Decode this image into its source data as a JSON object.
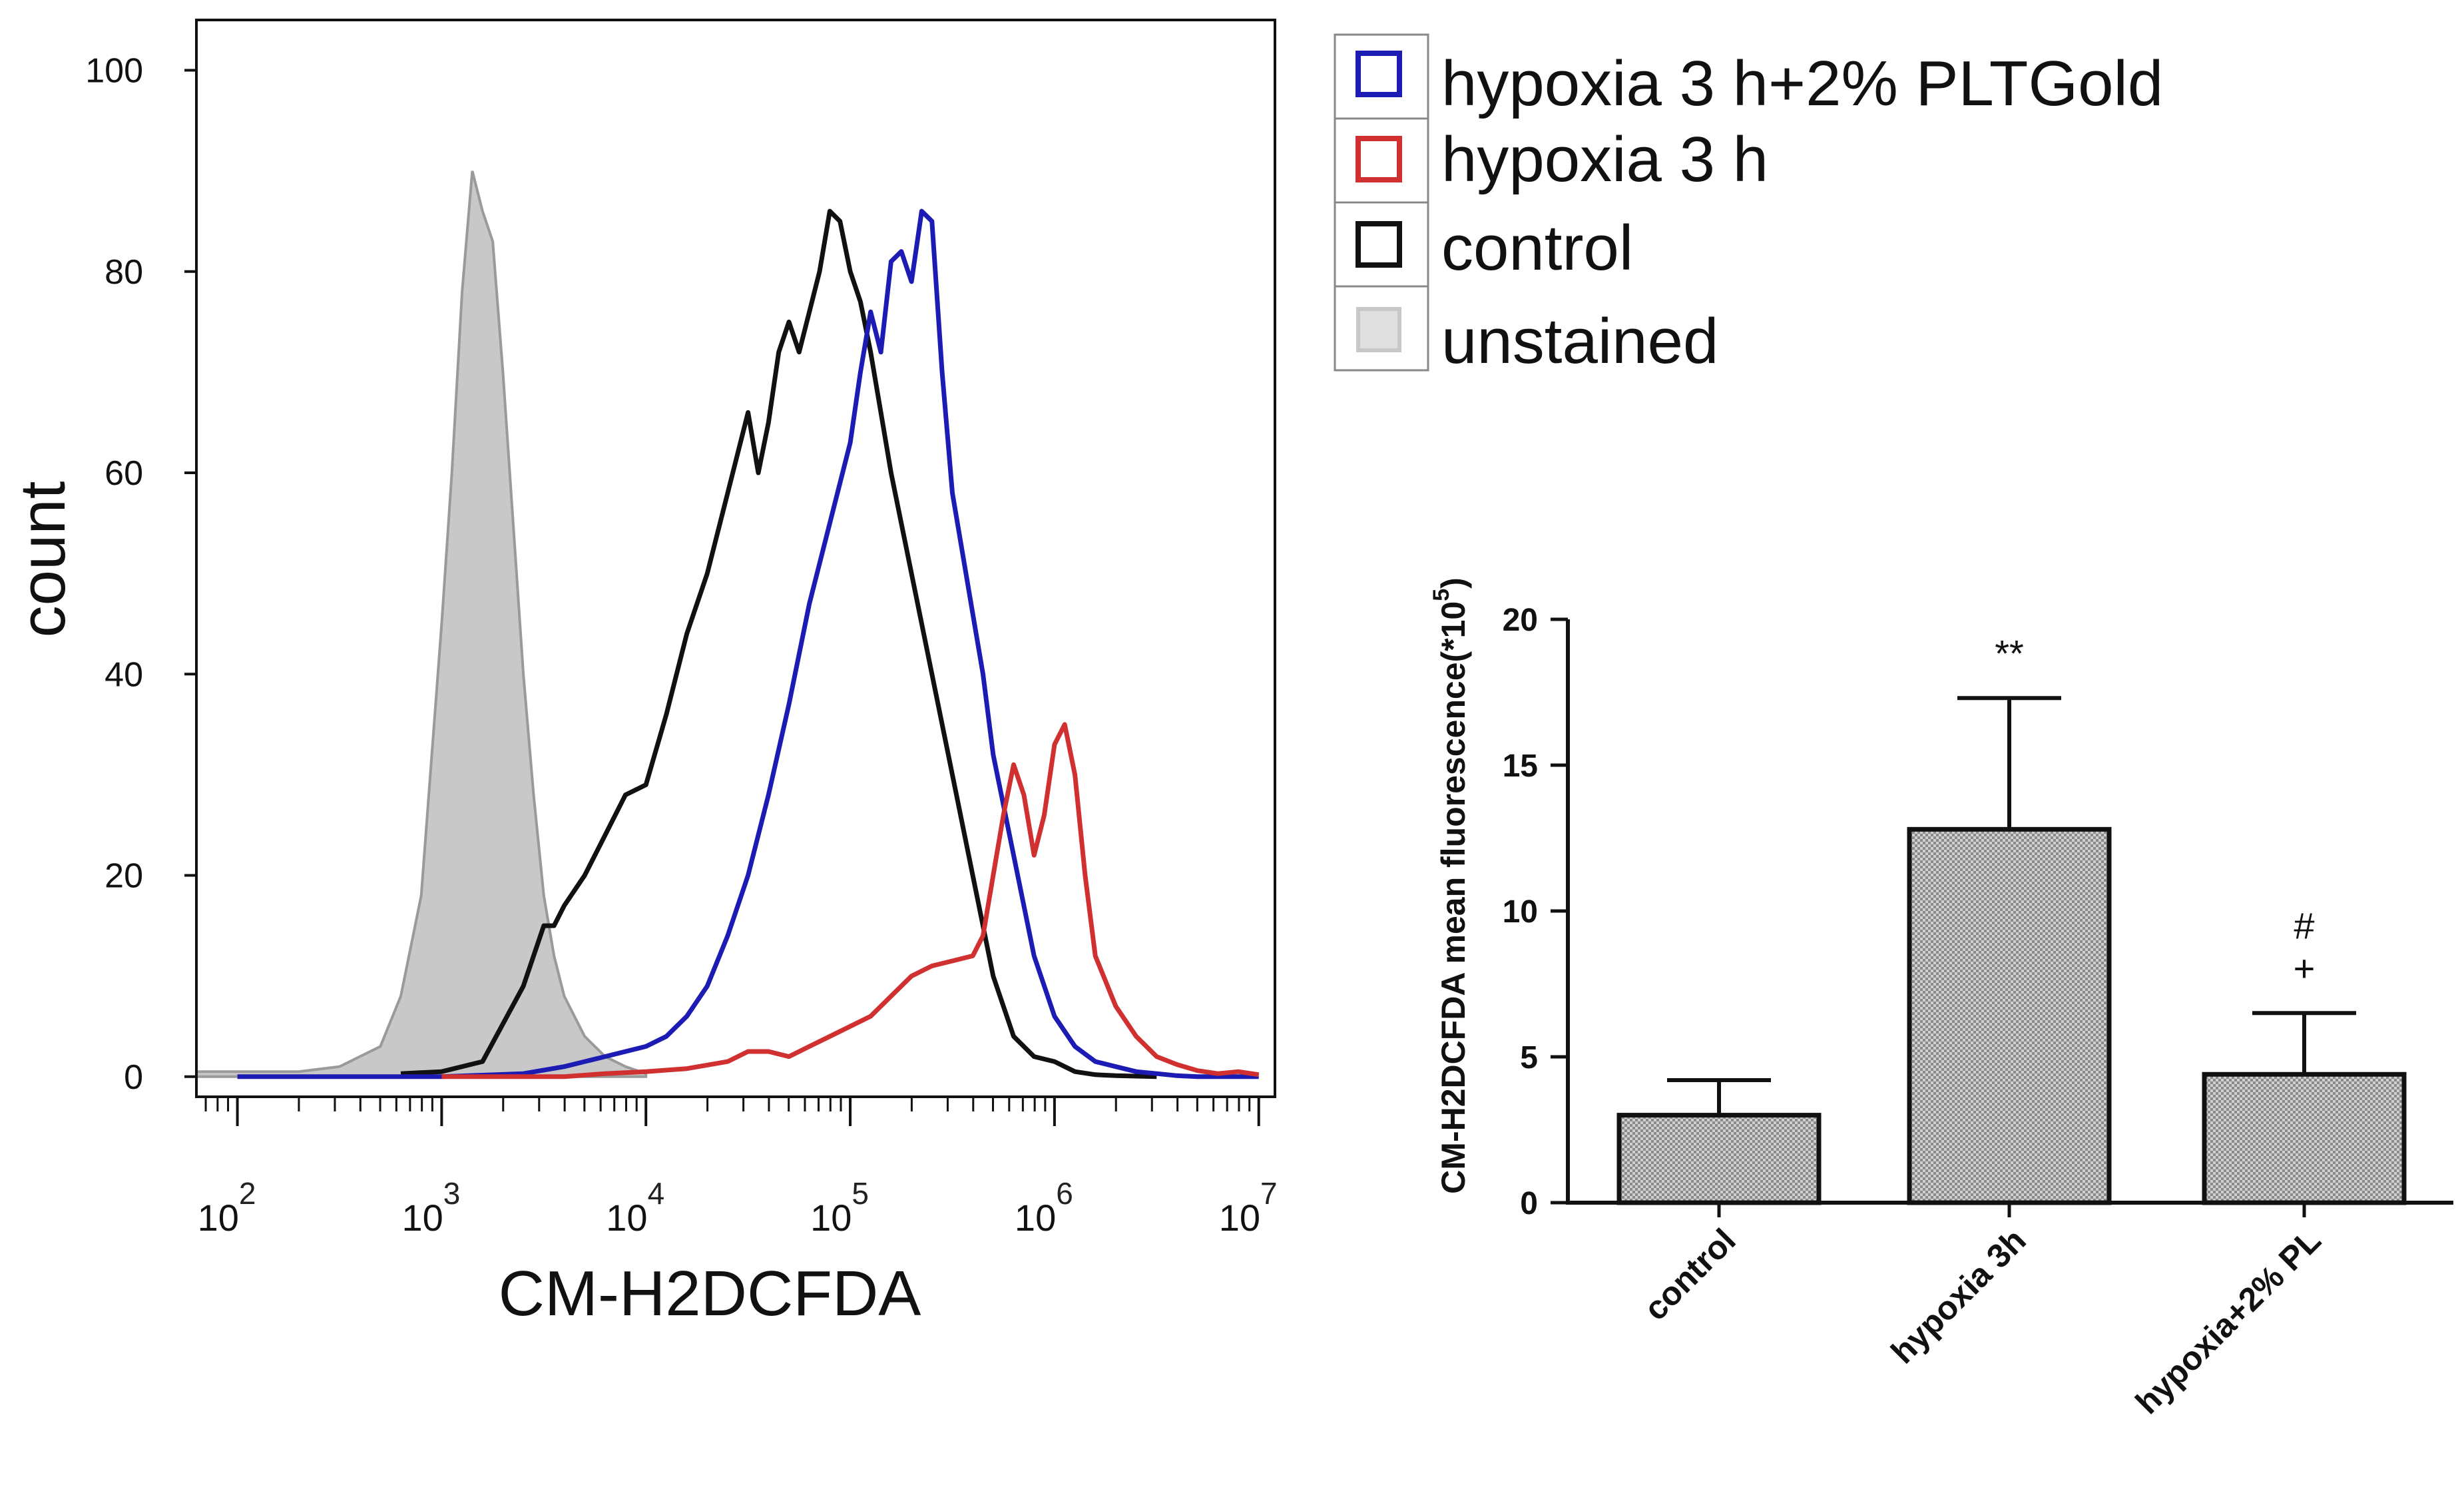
{
  "legend": {
    "entries": [
      {
        "label": "hypoxia 3 h+2% PLTGold",
        "color": "#1c1cb4"
      },
      {
        "label": "hypoxia 3 h",
        "color": "#d03030"
      },
      {
        "label": "control",
        "color": "#111111"
      },
      {
        "label": "unstained",
        "color": "#c8c8c8"
      }
    ]
  },
  "chart_data": [
    {
      "type": "line",
      "title": "",
      "xlabel": "CM-H2DCFDA",
      "ylabel": "count",
      "xscale": "log10",
      "xlim": [
        63,
        12000000
      ],
      "ylim": [
        -2,
        105
      ],
      "yticks": [
        "0",
        "20",
        "40",
        "60",
        "80",
        "100"
      ],
      "ytick_values": [
        0,
        20,
        40,
        60,
        80,
        100
      ],
      "xticks": [
        {
          "base": "10",
          "exp": "2",
          "value": 100
        },
        {
          "base": "10",
          "exp": "3",
          "value": 1000
        },
        {
          "base": "10",
          "exp": "4",
          "value": 10000
        },
        {
          "base": "10",
          "exp": "5",
          "value": 100000
        },
        {
          "base": "10",
          "exp": "6",
          "value": 1000000
        },
        {
          "base": "10",
          "exp": "7",
          "value": 10000000
        }
      ],
      "series": [
        {
          "name": "unstained",
          "color": "#c8c8c8",
          "fill": true,
          "log_x": [
            1.8,
            2.3,
            2.5,
            2.7,
            2.8,
            2.9,
            3.0,
            3.05,
            3.1,
            3.15,
            3.2,
            3.25,
            3.3,
            3.35,
            3.4,
            3.45,
            3.5,
            3.55,
            3.6,
            3.7,
            3.8,
            3.9,
            4.0
          ],
          "y": [
            0.5,
            0.5,
            1,
            3,
            8,
            18,
            45,
            60,
            78,
            90,
            86,
            83,
            70,
            55,
            40,
            28,
            18,
            12,
            8,
            4,
            2,
            1,
            0.3
          ]
        },
        {
          "name": "control",
          "color": "#111111",
          "fill": false,
          "log_x": [
            2.8,
            3.0,
            3.2,
            3.4,
            3.5,
            3.55,
            3.6,
            3.7,
            3.8,
            3.9,
            4.0,
            4.1,
            4.2,
            4.3,
            4.4,
            4.5,
            4.55,
            4.6,
            4.65,
            4.7,
            4.75,
            4.8,
            4.85,
            4.9,
            4.95,
            5.0,
            5.05,
            5.1,
            5.15,
            5.2,
            5.3,
            5.4,
            5.5,
            5.6,
            5.7,
            5.8,
            5.9,
            6.0,
            6.1,
            6.2,
            6.3,
            6.5
          ],
          "y": [
            0.3,
            0.5,
            1.5,
            9,
            15,
            15,
            17,
            20,
            24,
            28,
            29,
            36,
            44,
            50,
            58,
            66,
            60,
            65,
            72,
            75,
            72,
            76,
            80,
            86,
            85,
            80,
            77,
            72,
            66,
            60,
            50,
            40,
            30,
            20,
            10,
            4,
            2,
            1.5,
            0.5,
            0.2,
            0.1,
            0
          ]
        },
        {
          "name": "hypoxia 3 h+2% PLTGold",
          "color": "#1c1cb4",
          "fill": false,
          "log_x": [
            2.0,
            3.0,
            3.4,
            3.6,
            3.7,
            3.8,
            3.9,
            4.0,
            4.1,
            4.2,
            4.3,
            4.4,
            4.5,
            4.6,
            4.7,
            4.8,
            4.9,
            5.0,
            5.05,
            5.1,
            5.15,
            5.2,
            5.25,
            5.3,
            5.35,
            5.4,
            5.45,
            5.5,
            5.55,
            5.6,
            5.65,
            5.7,
            5.8,
            5.9,
            6.0,
            6.1,
            6.2,
            6.3,
            6.4,
            6.5,
            6.6,
            6.7,
            7.0
          ],
          "y": [
            0,
            0,
            0.3,
            1,
            1.5,
            2,
            2.5,
            3,
            4,
            6,
            9,
            14,
            20,
            28,
            37,
            47,
            55,
            63,
            70,
            76,
            72,
            81,
            82,
            79,
            86,
            85,
            70,
            58,
            52,
            46,
            40,
            32,
            22,
            12,
            6,
            3,
            1.5,
            1,
            0.5,
            0.3,
            0.1,
            0,
            0
          ]
        },
        {
          "name": "hypoxia 3 h",
          "color": "#d03030",
          "fill": false,
          "log_x": [
            3.0,
            3.6,
            3.8,
            4.0,
            4.2,
            4.4,
            4.5,
            4.6,
            4.7,
            4.8,
            4.9,
            5.0,
            5.1,
            5.2,
            5.3,
            5.4,
            5.5,
            5.6,
            5.65,
            5.7,
            5.75,
            5.8,
            5.85,
            5.9,
            5.95,
            6.0,
            6.05,
            6.1,
            6.15,
            6.2,
            6.3,
            6.4,
            6.5,
            6.6,
            6.7,
            6.8,
            6.9,
            7.0
          ],
          "y": [
            0,
            0,
            0.3,
            0.5,
            0.8,
            1.5,
            2.5,
            2.5,
            2,
            3,
            4,
            5,
            6,
            8,
            10,
            11,
            11.5,
            12,
            14,
            20,
            26,
            31,
            28,
            22,
            26,
            33,
            35,
            30,
            20,
            12,
            7,
            4,
            2,
            1.2,
            0.6,
            0.3,
            0.5,
            0.2
          ]
        }
      ]
    },
    {
      "type": "bar",
      "title": "",
      "xlabel": "",
      "ylabel": "CM-H2DCFDA mean fluorescence(*10",
      "ylabel_sup": "5",
      "ylabel_close": ")",
      "ylim": [
        0,
        20
      ],
      "yticks": [
        "0",
        "5",
        "10",
        "15",
        "20"
      ],
      "ytick_values": [
        0,
        5,
        10,
        15,
        20
      ],
      "categories": [
        "control",
        "hypoxia 3h",
        "hypoxia+2% PL"
      ],
      "values": [
        3.0,
        12.8,
        4.4
      ],
      "errors": [
        1.2,
        4.5,
        2.1
      ],
      "annotations": [
        {
          "category": "hypoxia 3h",
          "text": "**"
        },
        {
          "category": "hypoxia+2% PL",
          "text": "#"
        },
        {
          "category": "hypoxia+2% PL",
          "text": "+"
        }
      ]
    }
  ]
}
